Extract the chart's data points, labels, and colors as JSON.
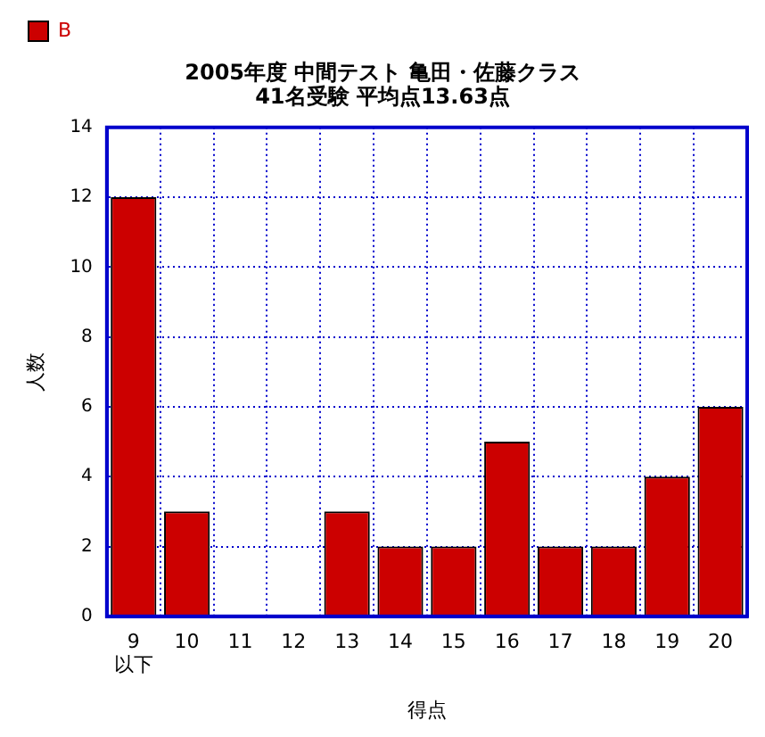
{
  "chart_data": {
    "type": "bar",
    "title": "2005年度 中間テスト 亀田・佐藤クラス\n41名受験 平均点13.63点",
    "xlabel": "得点",
    "ylabel": "人数",
    "categories": [
      "9\n以下",
      "10",
      "11",
      "12",
      "13",
      "14",
      "15",
      "16",
      "17",
      "18",
      "19",
      "20"
    ],
    "series": [
      {
        "name": "B",
        "color": "#cc0000",
        "values": [
          12,
          3,
          0,
          0,
          3,
          2,
          2,
          5,
          2,
          2,
          4,
          6
        ]
      }
    ],
    "ylim": [
      0,
      14
    ],
    "yticks": [
      0,
      2,
      4,
      6,
      8,
      10,
      12,
      14
    ],
    "grid": true,
    "legend": "top left"
  }
}
